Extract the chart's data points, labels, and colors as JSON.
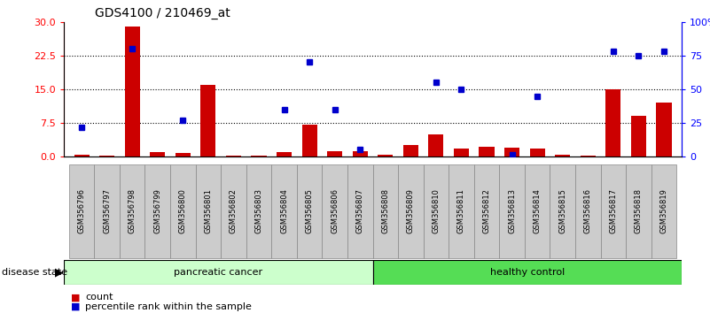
{
  "title": "GDS4100 / 210469_at",
  "samples": [
    "GSM356796",
    "GSM356797",
    "GSM356798",
    "GSM356799",
    "GSM356800",
    "GSM356801",
    "GSM356802",
    "GSM356803",
    "GSM356804",
    "GSM356805",
    "GSM356806",
    "GSM356807",
    "GSM356808",
    "GSM356809",
    "GSM356810",
    "GSM356811",
    "GSM356812",
    "GSM356813",
    "GSM356814",
    "GSM356815",
    "GSM356816",
    "GSM356817",
    "GSM356818",
    "GSM356819"
  ],
  "counts": [
    0.3,
    0.1,
    29.0,
    1.0,
    0.8,
    16.0,
    0.1,
    0.1,
    1.0,
    7.0,
    1.2,
    1.2,
    0.3,
    2.5,
    5.0,
    1.8,
    2.2,
    2.0,
    1.8,
    0.3,
    0.1,
    15.0,
    9.0,
    12.0
  ],
  "percentiles": [
    22.0,
    null,
    80.0,
    null,
    27.0,
    null,
    null,
    null,
    35.0,
    70.0,
    35.0,
    5.0,
    null,
    null,
    55.0,
    50.0,
    null,
    1.0,
    45.0,
    null,
    null,
    78.0,
    75.0,
    78.0
  ],
  "num_pancreatic": 12,
  "num_healthy": 12,
  "bar_color": "#cc0000",
  "dot_color": "#0000cc",
  "pancreatic_color": "#ccffcc",
  "healthy_color": "#55dd55",
  "xtick_bg": "#cccccc",
  "left_ylim": [
    0,
    30
  ],
  "right_ylim": [
    0,
    100
  ],
  "left_yticks": [
    0,
    7.5,
    15,
    22.5,
    30
  ],
  "right_yticks": [
    0,
    25,
    50,
    75,
    100
  ],
  "right_yticklabels": [
    "0",
    "25",
    "50",
    "75",
    "100%"
  ],
  "grid_lines": [
    7.5,
    15,
    22.5
  ]
}
